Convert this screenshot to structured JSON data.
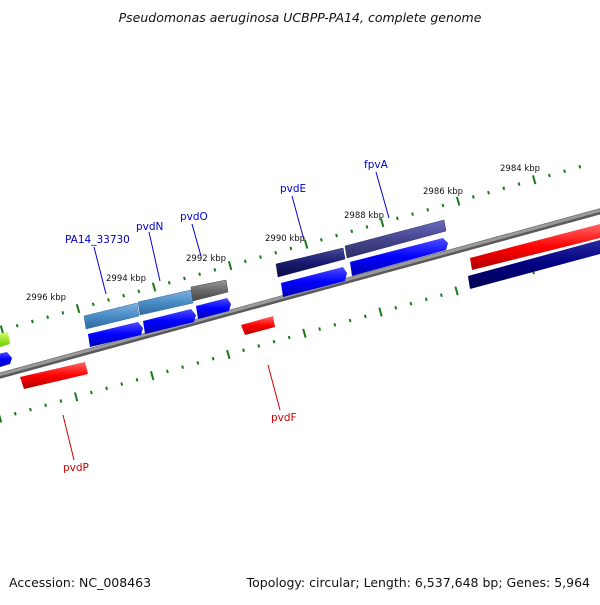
{
  "title": "Pseudomonas aeruginosa UCBPP-PA14, complete genome",
  "accession": "Accession: NC_008463",
  "summary": "Topology: circular; Length: 6,537,648 bp; Genes: 5,964",
  "colors": {
    "backbone": "#8a8a8a",
    "tick": "#1a7a1a",
    "label_top": "#0000cc",
    "label_bottom": "#cc0000",
    "cds_forward": "#0000ff",
    "cds_reverse": "#ff0000",
    "navy": "#000080"
  },
  "scale_ticks": [
    {
      "label": "2984 kbp"
    },
    {
      "label": "2986 kbp"
    },
    {
      "label": "2988 kbp"
    },
    {
      "label": "2990 kbp"
    },
    {
      "label": "2992 kbp"
    },
    {
      "label": "2994 kbp"
    },
    {
      "label": "2996 kbp"
    }
  ],
  "gene_labels": [
    {
      "name": "fpvA",
      "strand": "forward"
    },
    {
      "name": "pvdE",
      "strand": "forward"
    },
    {
      "name": "pvdO",
      "strand": "forward"
    },
    {
      "name": "pvdN",
      "strand": "forward"
    },
    {
      "name": "PA14_33730",
      "strand": "forward"
    },
    {
      "name": "pvdF",
      "strand": "reverse"
    },
    {
      "name": "pvdP",
      "strand": "reverse"
    }
  ]
}
